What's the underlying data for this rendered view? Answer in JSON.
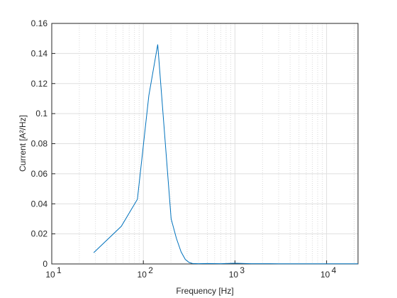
{
  "chart_data": {
    "type": "line",
    "xlabel": "Frequency [Hz]",
    "ylabel": "Current [A²/Hz]",
    "x": [
      28.7,
      57.4,
      86.1,
      114.8,
      143.5,
      172.3,
      201,
      229.6,
      258.3,
      287,
      315.7,
      344.5,
      400,
      500,
      700,
      1000,
      1500,
      2000,
      3000,
      5000,
      8000,
      12000,
      16000,
      22050
    ],
    "series": [
      {
        "color": "#0072bd",
        "values": [
          0.0075,
          0.025,
          0.043,
          0.112,
          0.146,
          0.083,
          0.03,
          0.017,
          0.008,
          0.003,
          0.001,
          0.0003,
          0.0002,
          0.0003,
          0.0002,
          0.0005,
          0.0002,
          0.0002,
          0.0001,
          0.0001,
          0.0001,
          0.0001,
          0.0001,
          0.0001
        ]
      }
    ],
    "xscale": "log",
    "xlim": [
      10,
      22050
    ],
    "xticks": [
      {
        "value": 10,
        "label": "10",
        "exponent": "1"
      },
      {
        "value": 100,
        "label": "10",
        "exponent": "2"
      },
      {
        "value": 1000,
        "label": "10",
        "exponent": "3"
      },
      {
        "value": 10000,
        "label": "10",
        "exponent": "4"
      }
    ],
    "xminorticks": [
      20,
      30,
      40,
      50,
      60,
      70,
      80,
      90,
      200,
      300,
      400,
      500,
      600,
      700,
      800,
      900,
      2000,
      3000,
      4000,
      5000,
      6000,
      7000,
      8000,
      9000,
      20000
    ],
    "ylim": [
      0,
      0.16
    ],
    "yticks": [
      0,
      0.02,
      0.04,
      0.06,
      0.08,
      0.1,
      0.12,
      0.14,
      0.16
    ],
    "grid": true
  }
}
